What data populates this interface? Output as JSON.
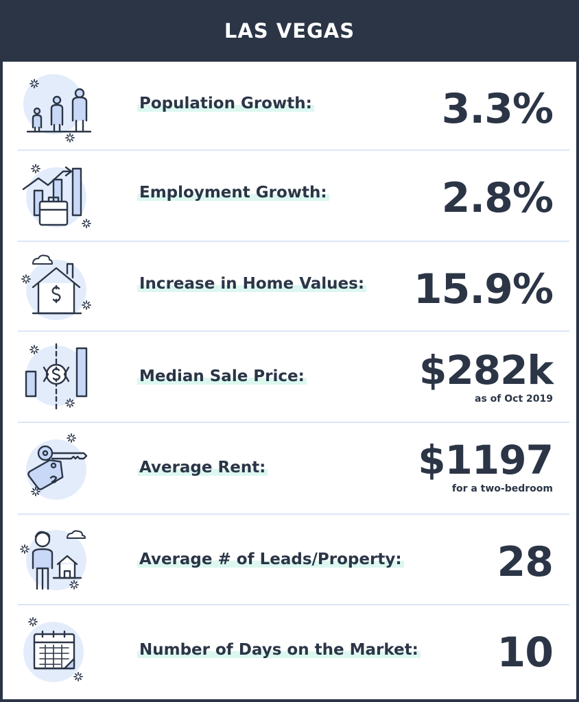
{
  "header": {
    "title": "LAS VEGAS"
  },
  "stats": [
    {
      "icon": "family-icon",
      "label": "Population Growth:",
      "value": "3.3%"
    },
    {
      "icon": "employment-chart-icon",
      "label": "Employment Growth:",
      "value": "2.8%"
    },
    {
      "icon": "house-dollar-icon",
      "label": "Increase in Home Values:",
      "value": "15.9%"
    },
    {
      "icon": "price-chart-icon",
      "label": "Median Sale Price:",
      "value": "$282k",
      "note": "as of Oct 2019"
    },
    {
      "icon": "key-tag-icon",
      "label": "Average Rent:",
      "value": "$1197",
      "note": "for a two-bedroom"
    },
    {
      "icon": "person-house-icon",
      "label": "Average # of Leads/Property:",
      "value": "28"
    },
    {
      "icon": "calendar-icon",
      "label": "Number of Days on the Market:",
      "value": "10"
    }
  ],
  "colors": {
    "header_bg": "#2b3546",
    "text": "#2b3546",
    "icon_fill": "#e3ecfb",
    "label_highlight": "#dcf7f0",
    "divider": "#dbe6f7"
  }
}
